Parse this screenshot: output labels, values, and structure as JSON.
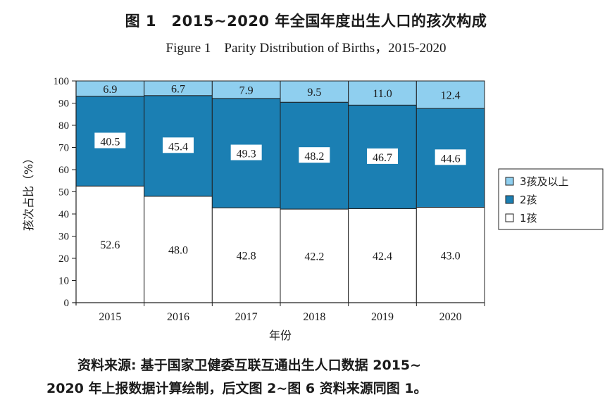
{
  "figure": {
    "title_cn": "图 1　2015~2020 年全国年度出生人口的孩次构成",
    "title_en": "Figure 1　Parity Distribution of Births，2015-2020"
  },
  "source": {
    "label": "资料来源:",
    "line1": "基于国家卫健委互联互通出生人口数据 2015~",
    "line2": "2020 年上报数据计算绘制，后文图 2~图 6 资料来源同图 1。"
  },
  "colors": {
    "third_plus": "#8fcfef",
    "second": "#1b7fb3",
    "first": "#ffffff",
    "stroke": "#222222"
  },
  "chart_data": {
    "type": "bar",
    "stacked": true,
    "categories": [
      "2015",
      "2016",
      "2017",
      "2018",
      "2019",
      "2020"
    ],
    "series": [
      {
        "name": "1孩",
        "values": [
          52.6,
          48.0,
          42.8,
          42.2,
          42.4,
          43.0
        ],
        "labels": [
          "52.6",
          "48.0",
          "42.8",
          "42.2",
          "42.4",
          "43.0"
        ],
        "color": "#ffffff"
      },
      {
        "name": "2孩",
        "values": [
          40.5,
          45.4,
          49.3,
          48.2,
          46.7,
          44.6
        ],
        "labels": [
          "40.5",
          "45.4",
          "49.3",
          "48.2",
          "46.7",
          "44.6"
        ],
        "color": "#1b7fb3"
      },
      {
        "name": "3孩及以上",
        "values": [
          6.9,
          6.7,
          7.9,
          9.5,
          11.0,
          12.4
        ],
        "labels": [
          "6.9",
          "6.7",
          "7.9",
          "9.5",
          "11.0",
          "12.4"
        ],
        "color": "#8fcfef"
      }
    ],
    "xlabel": "年份",
    "ylabel": "孩次占比（%）",
    "ylim": [
      0,
      100
    ],
    "yticks": [
      "0",
      "10",
      "20",
      "30",
      "40",
      "50",
      "60",
      "70",
      "80",
      "90",
      "100"
    ],
    "legend_order": [
      "3孩及以上",
      "2孩",
      "1孩"
    ],
    "legend_position": "right"
  }
}
